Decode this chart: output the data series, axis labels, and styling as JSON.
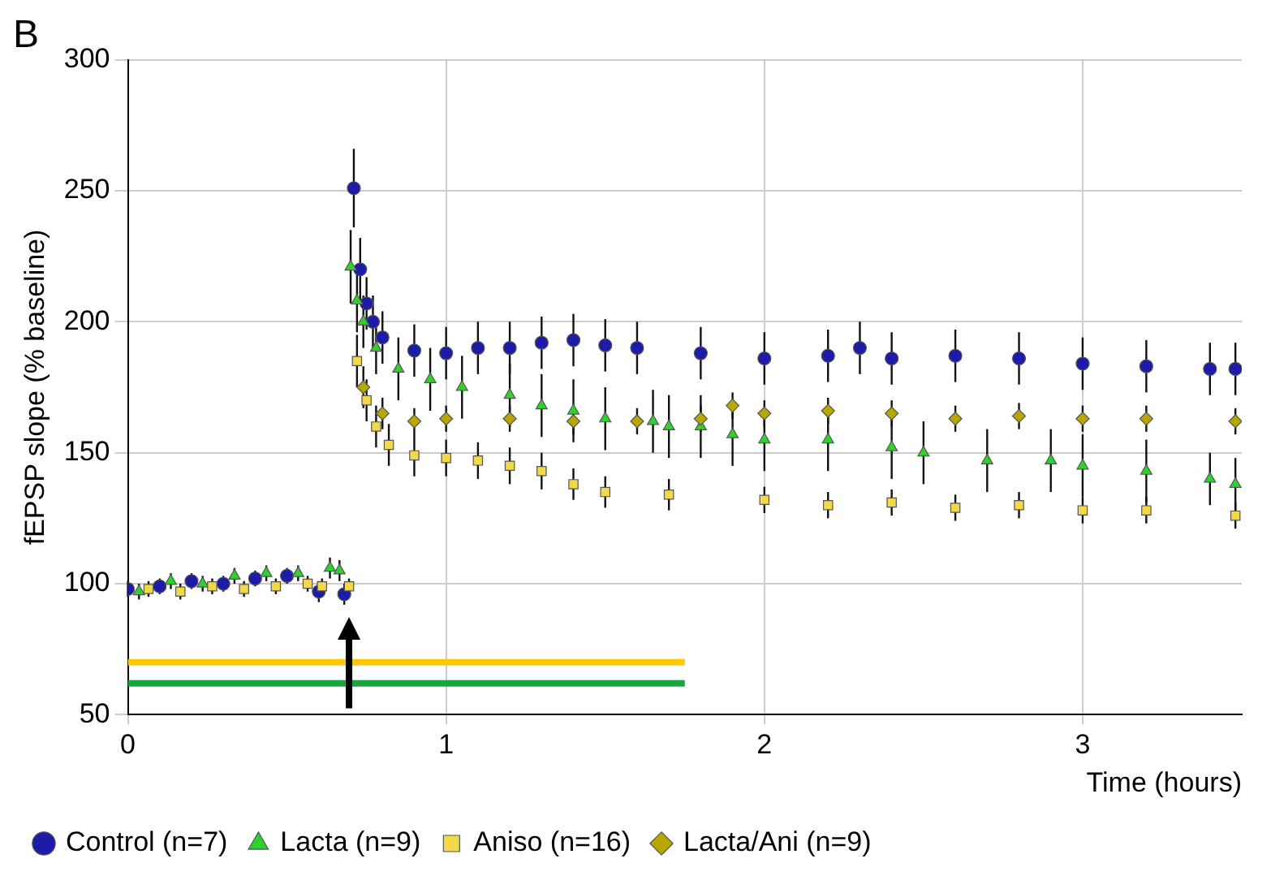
{
  "chart_data": {
    "type": "scatter",
    "title": "B",
    "xlabel": "Time (hours)",
    "ylabel": "fEPSP slope (% baseline)",
    "xlim": [
      0,
      3.5
    ],
    "ylim": [
      50,
      300
    ],
    "xticks": [
      0,
      1,
      2,
      3
    ],
    "yticks": [
      50,
      100,
      150,
      200,
      250,
      300
    ],
    "grid": true,
    "legend": "bottom",
    "series": [
      {
        "name": "Control (n=7)",
        "color": "#1c1ca8",
        "marker": "circle",
        "x": [
          0,
          0.1,
          0.2,
          0.3,
          0.4,
          0.5,
          0.6,
          0.68,
          0.71,
          0.73,
          0.75,
          0.77,
          0.8,
          0.9,
          1.0,
          1.1,
          1.2,
          1.3,
          1.4,
          1.5,
          1.6,
          1.8,
          2.0,
          2.2,
          2.3,
          2.4,
          2.6,
          2.8,
          3.0,
          3.2,
          3.4,
          3.48
        ],
        "values": [
          98,
          99,
          101,
          100,
          102,
          103,
          97,
          96,
          251,
          220,
          207,
          200,
          194,
          189,
          188,
          190,
          190,
          192,
          193,
          191,
          190,
          188,
          186,
          187,
          190,
          186,
          187,
          186,
          184,
          183,
          182,
          182
        ],
        "errors": [
          3,
          3,
          3,
          3,
          3,
          3,
          4,
          4,
          15,
          12,
          10,
          10,
          10,
          10,
          10,
          10,
          10,
          10,
          10,
          10,
          10,
          10,
          10,
          10,
          10,
          10,
          10,
          10,
          10,
          10,
          10,
          10
        ]
      },
      {
        "name": "Lacta (n=9)",
        "color": "#2ed12e",
        "marker": "triangle",
        "x": [
          0.035,
          0.135,
          0.235,
          0.335,
          0.435,
          0.535,
          0.635,
          0.665,
          0.7,
          0.72,
          0.74,
          0.78,
          0.85,
          0.95,
          1.05,
          1.2,
          1.3,
          1.4,
          1.5,
          1.65,
          1.7,
          1.8,
          1.9,
          2.0,
          2.2,
          2.4,
          2.5,
          2.7,
          2.9,
          3.0,
          3.2,
          3.4,
          3.48
        ],
        "values": [
          97,
          101,
          100,
          103,
          104,
          104,
          106,
          105,
          221,
          208,
          200,
          190,
          182,
          178,
          175,
          172,
          168,
          166,
          163,
          162,
          160,
          160,
          157,
          155,
          155,
          152,
          150,
          147,
          147,
          145,
          143,
          140,
          138
        ],
        "errors": [
          3,
          3,
          3,
          3,
          3,
          3,
          4,
          4,
          14,
          12,
          10,
          10,
          12,
          12,
          12,
          12,
          12,
          12,
          12,
          12,
          12,
          12,
          12,
          12,
          12,
          12,
          12,
          12,
          12,
          12,
          12,
          10,
          10
        ]
      },
      {
        "name": "Aniso (n=16)",
        "color": "#f2d94a",
        "marker": "square",
        "x": [
          0.065,
          0.165,
          0.265,
          0.365,
          0.465,
          0.565,
          0.61,
          0.695,
          0.72,
          0.75,
          0.78,
          0.82,
          0.9,
          1.0,
          1.1,
          1.2,
          1.3,
          1.4,
          1.5,
          1.7,
          2.0,
          2.2,
          2.4,
          2.6,
          2.8,
          3.0,
          3.2,
          3.48
        ],
        "values": [
          98,
          97,
          99,
          98,
          99,
          100,
          99,
          99,
          185,
          170,
          160,
          153,
          149,
          148,
          147,
          145,
          143,
          138,
          135,
          134,
          132,
          130,
          131,
          129,
          130,
          128,
          128,
          126
        ],
        "errors": [
          3,
          3,
          3,
          3,
          3,
          3,
          3,
          3,
          10,
          8,
          8,
          8,
          8,
          7,
          7,
          7,
          7,
          6,
          6,
          6,
          5,
          5,
          5,
          5,
          5,
          5,
          5,
          5
        ]
      },
      {
        "name": "Lacta/Ani (n=9)",
        "color": "#b5a800",
        "marker": "diamond",
        "x": [
          0.74,
          0.8,
          0.9,
          1.0,
          1.2,
          1.4,
          1.6,
          1.8,
          1.9,
          2.0,
          2.2,
          2.4,
          2.6,
          2.8,
          3.0,
          3.2,
          3.48
        ],
        "values": [
          175,
          165,
          162,
          163,
          163,
          162,
          162,
          163,
          168,
          165,
          166,
          165,
          163,
          164,
          163,
          163,
          162
        ],
        "errors": [
          8,
          6,
          5,
          5,
          5,
          5,
          5,
          5,
          5,
          5,
          5,
          5,
          5,
          5,
          5,
          5,
          5
        ]
      },
      {
        "type": "line",
        "color": "#ffc800",
        "marker": "none",
        "x": [
          0,
          1.75
        ],
        "values": [
          70,
          70
        ]
      },
      {
        "type": "line",
        "color": "#1aa53a",
        "marker": "none",
        "x": [
          0,
          1.75
        ],
        "values": [
          62,
          62
        ]
      }
    ]
  }
}
